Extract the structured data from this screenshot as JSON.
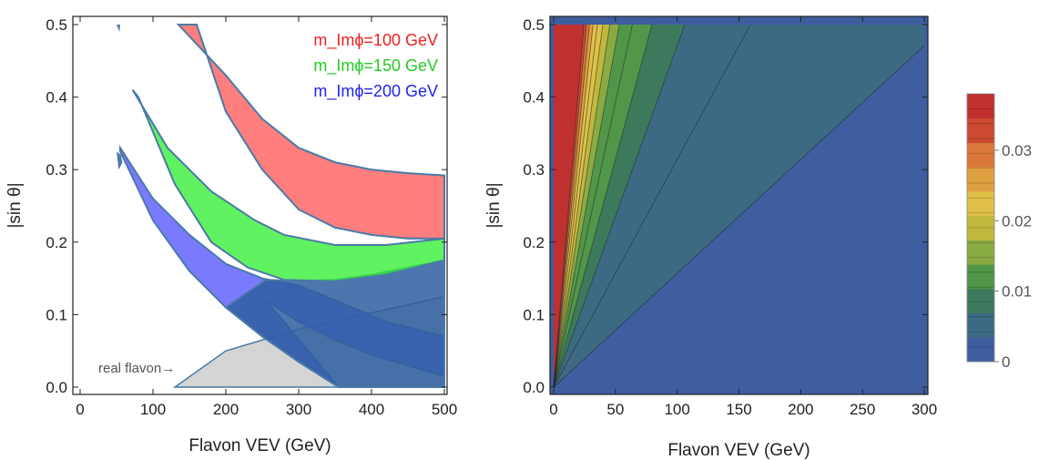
{
  "chart_data": [
    {
      "type": "area",
      "xlabel": "Flavon VEV (GeV)",
      "ylabel": "|sin θ|",
      "xlim": [
        0,
        500
      ],
      "ylim": [
        0,
        0.5
      ],
      "xticks": [
        "0",
        "100",
        "200",
        "300",
        "400",
        "500"
      ],
      "yticks": [
        "0.0",
        "0.1",
        "0.2",
        "0.3",
        "0.4",
        "0.5"
      ],
      "legend_position": "top-right",
      "series": [
        {
          "name": "m_Imϕ=100 GeV",
          "color": "#ff5a5a",
          "lower_x": [
            160,
            200,
            250,
            300,
            350,
            400,
            450,
            500
          ],
          "lower_y": [
            0.5,
            0.38,
            0.3,
            0.245,
            0.22,
            0.21,
            0.205,
            0.205
          ],
          "upper_x": [
            135,
            200,
            250,
            300,
            350,
            400,
            450,
            500
          ],
          "upper_y": [
            0.5,
            0.43,
            0.37,
            0.33,
            0.31,
            0.3,
            0.295,
            0.292
          ]
        },
        {
          "name": "m_Imϕ=150 GeV",
          "color": "#33ee33",
          "lower_x": [
            80,
            130,
            180,
            230,
            280,
            350,
            420,
            500
          ],
          "lower_y": [
            0.4,
            0.28,
            0.2,
            0.165,
            0.148,
            0.146,
            0.155,
            0.175
          ],
          "upper_x": [
            72,
            120,
            180,
            240,
            280,
            350,
            420,
            500
          ],
          "upper_y": [
            0.41,
            0.33,
            0.27,
            0.23,
            0.21,
            0.196,
            0.196,
            0.205
          ]
        },
        {
          "name": "m_Imϕ=200 GeV",
          "color": "#5555ff",
          "lower_x": [
            55,
            100,
            150,
            200,
            250,
            300,
            355
          ],
          "lower_y": [
            0.325,
            0.23,
            0.16,
            0.11,
            0.07,
            0.035,
            0.0
          ],
          "upper_x": [
            55,
            100,
            150,
            200,
            250,
            300,
            350,
            420,
            500
          ],
          "upper_y": [
            0.33,
            0.26,
            0.21,
            0.17,
            0.15,
            0.14,
            0.12,
            0.09,
            0.07
          ],
          "lower_bound_x": [
            255,
            300,
            350,
            400,
            450,
            500
          ],
          "lower_bound_y": [
            0.12,
            0.09,
            0.065,
            0.045,
            0.03,
            0.015
          ]
        },
        {
          "name": "real flavon",
          "color": "#cccccc",
          "x": [
            130,
            200,
            300,
            500
          ],
          "y_upper": [
            0.0,
            0.05,
            0.08,
            0.125
          ],
          "y_lower": [
            0.0,
            0.0,
            0.0,
            0.0
          ]
        }
      ],
      "annotations": [
        {
          "text": "real flavon→",
          "x": 25,
          "y": 0.025
        }
      ]
    },
    {
      "type": "heatmap",
      "xlabel": "Flavon VEV (GeV)",
      "ylabel": "|sin θ|",
      "xlim": [
        0,
        300
      ],
      "ylim": [
        0,
        0.5
      ],
      "xticks": [
        "0",
        "50",
        "100",
        "150",
        "200",
        "250",
        "300"
      ],
      "yticks": [
        "0.0",
        "0.1",
        "0.2",
        "0.3",
        "0.4",
        "0.5"
      ],
      "description": "value ~ |sinθ|·c / VEV; contour lines are straight rays from origin",
      "contour_levels": [
        0.0325,
        0.03,
        0.0275,
        0.025,
        0.0225,
        0.02,
        0.0175,
        0.015,
        0.0125,
        0.01,
        0.0075,
        0.005,
        0.0025
      ],
      "contour_slope_at_level_0_0025": 0.00157,
      "colorbar": {
        "ticks": [
          "0",
          "0.01",
          "0.02",
          "0.03"
        ],
        "tick_values": [
          0,
          0.01,
          0.02,
          0.03
        ],
        "max": 0.038,
        "colors": [
          "#3f5ea0",
          "#3d6a83",
          "#3d7a5c",
          "#52964a",
          "#8aab42",
          "#c0b83e",
          "#e0c048",
          "#e0a040",
          "#d97838",
          "#cc4a32",
          "#c0302e"
        ]
      }
    }
  ],
  "colors": {
    "frame": "#222222",
    "boundary": "#4a7aa8"
  }
}
